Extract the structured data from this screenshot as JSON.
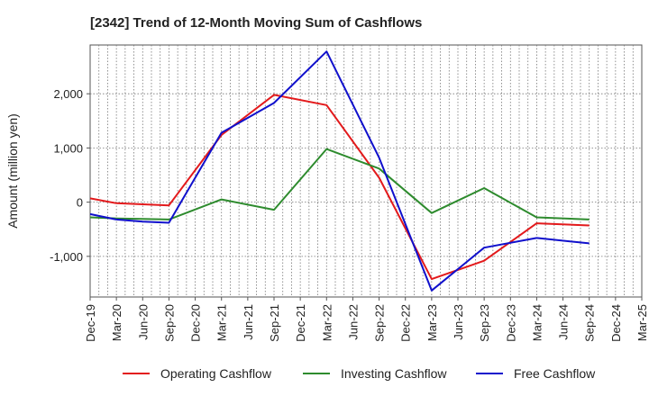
{
  "chart_data": {
    "type": "line",
    "title": "[2342]  Trend of 12-Month Moving Sum of Cashflows",
    "xlabel": "",
    "ylabel": "Amount (million yen)",
    "categories": [
      "Dec-19",
      "Mar-20",
      "Jun-20",
      "Sep-20",
      "Dec-20",
      "Mar-21",
      "Jun-21",
      "Sep-21",
      "Dec-21",
      "Mar-22",
      "Jun-22",
      "Sep-22",
      "Dec-22",
      "Mar-23",
      "Jun-23",
      "Sep-23",
      "Dec-23",
      "Mar-24",
      "Jun-24",
      "Sep-24",
      "Dec-24",
      "Mar-25"
    ],
    "y_ticks": [
      2000,
      1000,
      0,
      -1000
    ],
    "y_tick_labels": [
      "2,000",
      "1,000",
      "0",
      "-1,000"
    ],
    "ylim": [
      -1750,
      2900
    ],
    "grid": true,
    "legend_position": "bottom",
    "series": [
      {
        "name": "Operating Cashflow",
        "color": "#e31a1c",
        "values": [
          70,
          -20,
          -40,
          -60,
          null,
          1240,
          null,
          1980,
          null,
          1790,
          null,
          450,
          null,
          -1420,
          null,
          -1080,
          null,
          -390,
          null,
          -430,
          null,
          null
        ]
      },
      {
        "name": "Investing Cashflow",
        "color": "#2e8b2e",
        "values": [
          -280,
          -300,
          -310,
          -320,
          null,
          50,
          null,
          -140,
          null,
          980,
          null,
          620,
          null,
          -200,
          null,
          260,
          null,
          -280,
          null,
          -320,
          null,
          null
        ]
      },
      {
        "name": "Free Cashflow",
        "color": "#1010cc",
        "values": [
          -220,
          -320,
          -360,
          -380,
          null,
          1280,
          null,
          1830,
          null,
          2780,
          null,
          820,
          null,
          -1630,
          null,
          -840,
          null,
          -660,
          null,
          -760,
          null,
          null
        ]
      }
    ]
  }
}
